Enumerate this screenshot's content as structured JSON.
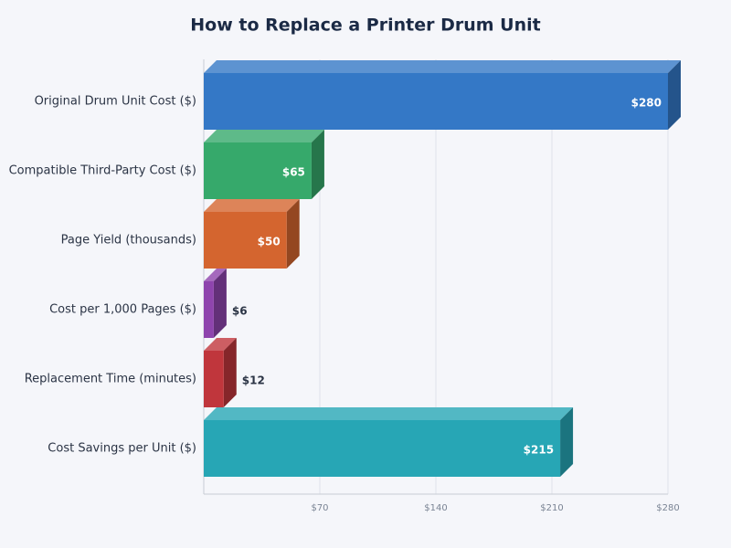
{
  "chart_data": {
    "type": "bar",
    "orientation": "horizontal",
    "title": "How to Replace a Printer Drum Unit",
    "categories": [
      "Original Drum Unit Cost ($)",
      "Compatible Third-Party Cost ($)",
      "Page Yield (thousands)",
      "Cost per 1,000 Pages ($)",
      "Replacement Time (minutes)",
      "Cost Savings per Unit ($)"
    ],
    "values": [
      280,
      65,
      50,
      6,
      12,
      215
    ],
    "value_labels": [
      "$280",
      "$65",
      "$50",
      "$6",
      "$12",
      "$215"
    ],
    "colors": [
      "#3478c6",
      "#36a96b",
      "#d4652f",
      "#8e44ad",
      "#c0363c",
      "#27a6b5"
    ],
    "xlim": [
      0,
      280
    ],
    "xticks": [
      {
        "value": 70,
        "label": "$70"
      },
      {
        "value": 140,
        "label": "$140"
      },
      {
        "value": 210,
        "label": "$210"
      },
      {
        "value": 280,
        "label": "$280"
      }
    ],
    "grid": true
  }
}
